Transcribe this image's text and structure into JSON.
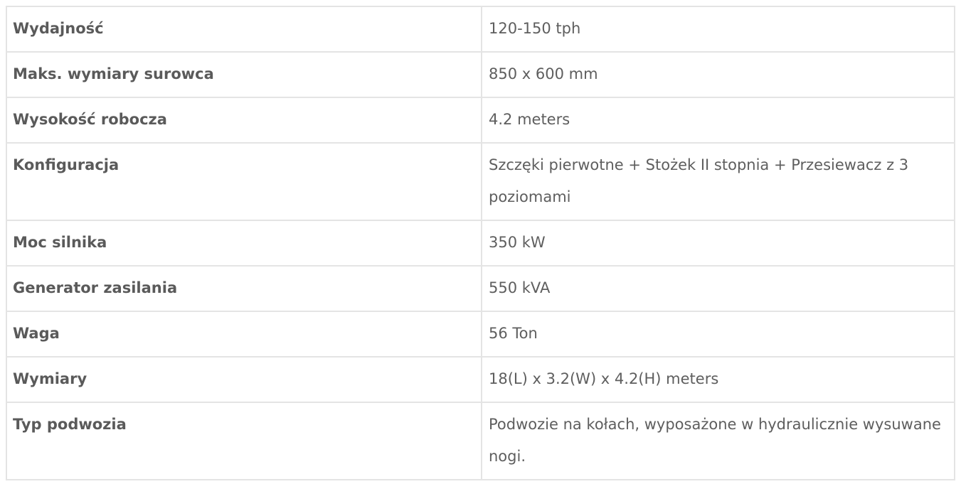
{
  "specs": [
    {
      "label": "Wydajność",
      "value": "120-150 tph"
    },
    {
      "label": "Maks. wymiary surowca",
      "value": "850 x 600 mm"
    },
    {
      "label": "Wysokość robocza",
      "value": "4.2 meters"
    },
    {
      "label": "Konfiguracja",
      "value": "Szczęki pierwotne + Stożek II stopnia + Przesiewacz z 3 poziomami"
    },
    {
      "label": "Moc silnika",
      "value": "350 kW"
    },
    {
      "label": "Generator zasilania",
      "value": "550 kVA"
    },
    {
      "label": "Waga",
      "value": "56 Ton"
    },
    {
      "label": "Wymiary",
      "value": "18(L) x 3.2(W) x 4.2(H) meters"
    },
    {
      "label": "Typ podwozia",
      "value": "Podwozie na kołach, wyposażone w hydraulicznie wysuwane nogi."
    }
  ]
}
